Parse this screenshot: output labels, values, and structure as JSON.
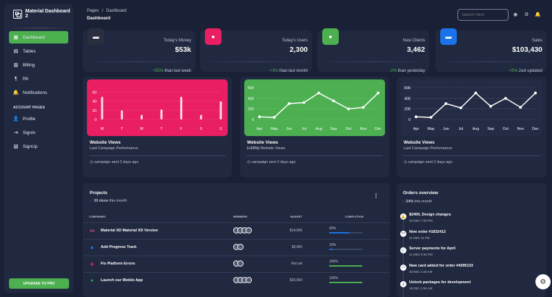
{
  "brand": "Material Dashboard 2",
  "sidebar": {
    "items": [
      {
        "label": "Dashboard",
        "icon": "dashboard-icon",
        "glyph": "▦"
      },
      {
        "label": "Tables",
        "icon": "table-icon",
        "glyph": "▤"
      },
      {
        "label": "Billing",
        "icon": "receipt-icon",
        "glyph": "▥"
      },
      {
        "label": "Rtl",
        "icon": "format-textdirection-icon",
        "glyph": "¶"
      },
      {
        "label": "Notifications",
        "icon": "bell-icon",
        "glyph": "🔔"
      }
    ],
    "section_label": "ACCOUNT PAGES",
    "account_items": [
      {
        "label": "Profile",
        "icon": "person-icon",
        "glyph": "👤"
      },
      {
        "label": "SignIn",
        "icon": "login-icon",
        "glyph": "⇥"
      },
      {
        "label": "SignUp",
        "icon": "assignment-icon",
        "glyph": "▧"
      }
    ],
    "upgrade": "UPGRADE TO PRO"
  },
  "header": {
    "breadcrumb_root": "Pages",
    "breadcrumb_sep": "/",
    "breadcrumb_current": "Dashboard",
    "title": "Dashboard",
    "search_placeholder": "Search here"
  },
  "stats": [
    {
      "label": "Today's Money",
      "value": "$53k",
      "pct": "+55%",
      "foot": " than last week",
      "color": "#292f3f",
      "icon": "weekend-icon",
      "glyph": "▬"
    },
    {
      "label": "Today's Users",
      "value": "2,300",
      "pct": "+3%",
      "foot": " than last month",
      "color": "#e91e63",
      "icon": "person-icon",
      "glyph": "●"
    },
    {
      "label": "New Clients",
      "value": "3,462",
      "pct": "-2%",
      "foot": " than yesterday",
      "color": "#4caf50",
      "icon": "person-add-icon",
      "glyph": "●"
    },
    {
      "label": "Sales",
      "value": "$103,430",
      "pct": "+5%",
      "foot": " Just updated",
      "color": "#1a73e8",
      "icon": "weekend-icon",
      "glyph": "▬"
    }
  ],
  "charts": [
    {
      "title": "Website Views",
      "sub": "Last Campaign Performance",
      "foot": "campaign sent 2 days ago",
      "bg": "#e91e63"
    },
    {
      "title": "Website Views",
      "sub": "(+15%) Website Views",
      "sub_pct": "(+15%)",
      "sub_rest": " Website Views",
      "foot": "campaign sent 2 days ago",
      "bg": "#4caf50"
    },
    {
      "title": "Website Views",
      "sub": "Last Campaign Performance",
      "foot": "campaign sent 2 days ago",
      "bg": "#242b45"
    }
  ],
  "chart_data": [
    {
      "type": "bar",
      "categories": [
        "M",
        "T",
        "W",
        "T",
        "F",
        "S",
        "S"
      ],
      "values": [
        50,
        20,
        10,
        22,
        50,
        10,
        40
      ],
      "title": "",
      "ylim": [
        0,
        70
      ],
      "yticks": [
        0,
        20,
        40,
        60
      ]
    },
    {
      "type": "line",
      "categories": [
        "Apr",
        "May",
        "Jun",
        "Jul",
        "Aug",
        "Sep",
        "Oct",
        "Nov",
        "Dec"
      ],
      "values": [
        50,
        40,
        300,
        320,
        500,
        350,
        200,
        230,
        500
      ],
      "title": "",
      "ylim": [
        0,
        600
      ],
      "yticks": [
        0,
        200,
        400,
        600
      ]
    },
    {
      "type": "line",
      "categories": [
        "Apr",
        "May",
        "Jun",
        "Jul",
        "Aug",
        "Sep",
        "Oct",
        "Nov",
        "Dec"
      ],
      "values": [
        50,
        40,
        300,
        220,
        500,
        250,
        400,
        230,
        500
      ],
      "title": "",
      "ylim": [
        0,
        600
      ],
      "yticks": [
        0,
        200,
        400,
        600
      ]
    }
  ],
  "projects": {
    "title": "Projects",
    "done_count": "30 done",
    "done_rest": " this month",
    "headers": [
      "COMPANIES",
      "MEMBERS",
      "BUDGET",
      "COMPLETION"
    ],
    "rows": [
      {
        "name": "Material XD Material XD Version",
        "budget": "$14,000",
        "completion": 60,
        "completion_label": "60%",
        "members": 4,
        "icon": "xd-icon",
        "glyph": "Xd",
        "color": "#ff3ea5",
        "bar": "#1a73e8"
      },
      {
        "name": "Add Progress Track",
        "budget": "$3,000",
        "completion": 10,
        "completion_label": "10%",
        "members": 2,
        "icon": "atlassian-icon",
        "glyph": "▲",
        "color": "#2684ff",
        "bar": "#1a73e8"
      },
      {
        "name": "Fix Platform Errors",
        "budget": "Not set",
        "completion": 100,
        "completion_label": "100%",
        "members": 2,
        "icon": "slack-icon",
        "glyph": "✱",
        "color": "#e01e5a",
        "bar": "#4caf50"
      },
      {
        "name": "Launch our Mobile App",
        "budget": "$20,500",
        "completion": 100,
        "completion_label": "100%",
        "members": 4,
        "icon": "spotify-icon",
        "glyph": "●",
        "color": "#1db954",
        "bar": "#4caf50"
      }
    ]
  },
  "orders": {
    "title": "Orders overview",
    "pct": "24%",
    "rest": " this month",
    "items": [
      {
        "title": "$2400, Design changes",
        "date": "22 DEC 7:20 PM",
        "icon": "bell-icon",
        "glyph": "🔔"
      },
      {
        "title": "New order #1832412",
        "date": "21 DEC 11 PM",
        "icon": "code-icon",
        "glyph": "<>"
      },
      {
        "title": "Server payments for April",
        "date": "21 DEC 9:34 PM",
        "icon": "cart-icon",
        "glyph": "🛒"
      },
      {
        "title": "New card added for order #4395133",
        "date": "20 DEC 2:20 AM",
        "icon": "credit-card-icon",
        "glyph": "▭"
      },
      {
        "title": "Unlock packages for development",
        "date": "18 DEC 4:54 AM",
        "icon": "key-icon",
        "glyph": "⚷"
      }
    ]
  }
}
